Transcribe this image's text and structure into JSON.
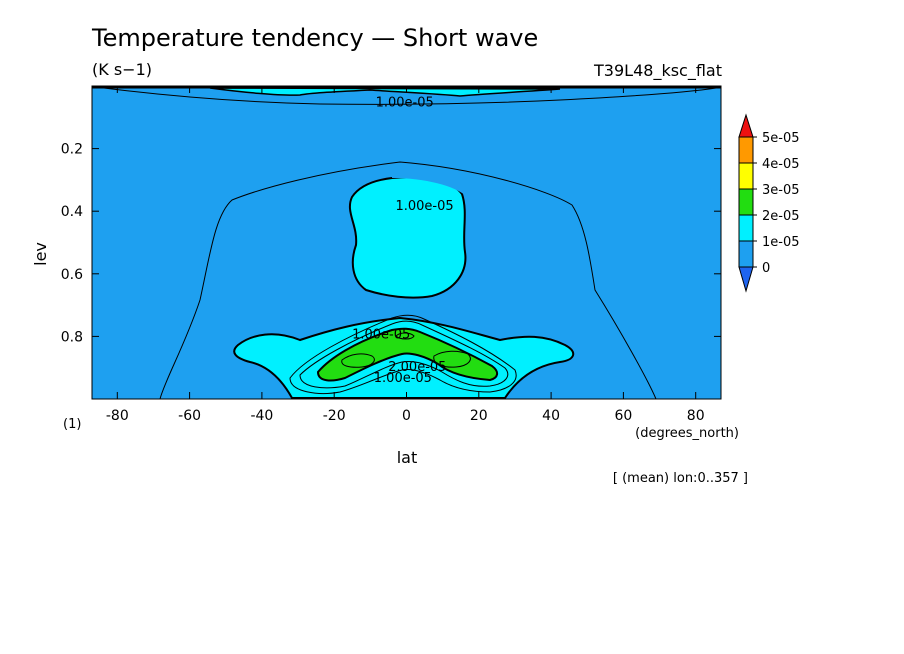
{
  "chart_data": {
    "type": "contour",
    "title": "Temperature tendency — Short wave",
    "units": "(K s−1)",
    "experiment": "T39L48_ksc_flat",
    "xlabel": "lat",
    "xunits": "(degrees_north)",
    "ylabel": "lev",
    "yunits": "(1)",
    "note": "[ (mean) lon:0..357 ]",
    "xlim": [
      -87,
      87
    ],
    "ylim": [
      0,
      1
    ],
    "y_inverted": true,
    "xticks": [
      -80,
      -60,
      -40,
      -20,
      0,
      20,
      40,
      60,
      80
    ],
    "yticks": [
      0.2,
      0.4,
      0.6,
      0.8
    ],
    "colorbar": {
      "levels": [
        "0",
        "1e-05",
        "2e-05",
        "3e-05",
        "4e-05",
        "5e-05"
      ],
      "colors": [
        "#1e64f0",
        "#1ea0f0",
        "#00f0ff",
        "#22dd11",
        "#ffff00",
        "#ff9900",
        "#ee1111"
      ]
    },
    "contour_labels": [
      {
        "text": "1.00e-05",
        "lat": -0.5,
        "lev": 0.05
      },
      {
        "text": "1.00e-05",
        "lat": 5,
        "lev": 0.38
      },
      {
        "text": "1.00e-05",
        "lat": -7,
        "lev": 0.79
      },
      {
        "text": "2.00e-05",
        "lat": 3,
        "lev": 0.895
      },
      {
        "text": "1.00e-05",
        "lat": -1,
        "lev": 0.93
      }
    ]
  }
}
